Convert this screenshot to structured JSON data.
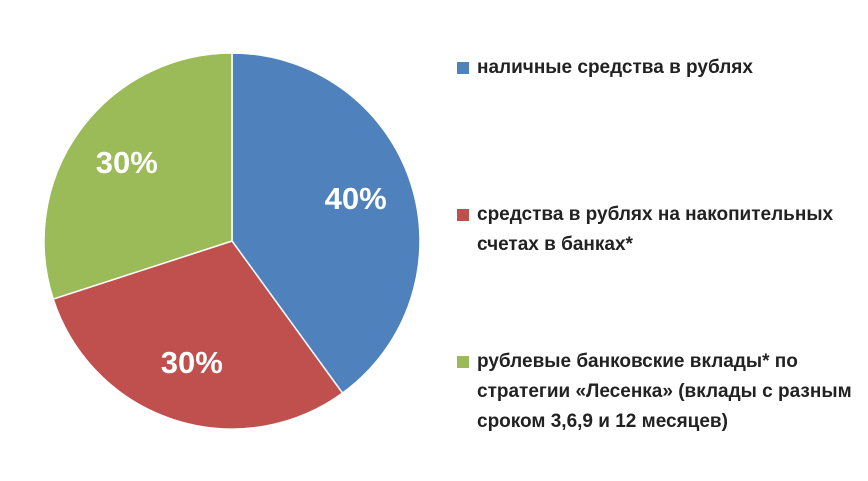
{
  "chart_data": {
    "type": "pie",
    "categories": [
      "наличные средства в рублях",
      "средства в рублях на накопительных счетах в банках*",
      "рублевые банковские вклады* по стратегии «Лесенка» (вклады с разным сроком 3,6,9 и 12 месяцев)"
    ],
    "values": [
      40,
      30,
      30
    ],
    "value_labels": [
      "40%",
      "30%",
      "30%"
    ],
    "colors": [
      "#4f81bd",
      "#c0504d",
      "#9bbb59"
    ],
    "legend": "right"
  }
}
